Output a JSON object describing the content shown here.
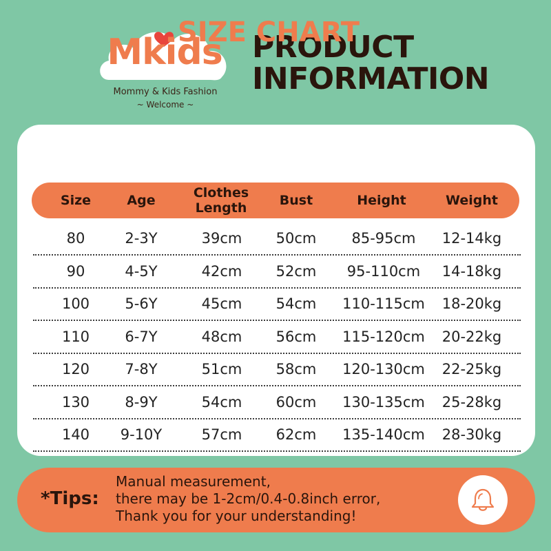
{
  "brand": {
    "name": "Mkids",
    "tagline": "Mommy & Kids Fashion",
    "sub": "~ Welcome ~",
    "logo_icons": [
      "cloud-icon",
      "heart-icon"
    ]
  },
  "headline": {
    "line1": "PRODUCT",
    "line2": "INFORMATION"
  },
  "chart": {
    "title": "SIZE CHART",
    "columns": [
      "Size",
      "Age",
      "Clothes Length",
      "Bust",
      "Height",
      "Weight"
    ],
    "rows": [
      [
        "80",
        "2-3Y",
        "39cm",
        "50cm",
        "85-95cm",
        "12-14kg"
      ],
      [
        "90",
        "4-5Y",
        "42cm",
        "52cm",
        "95-110cm",
        "14-18kg"
      ],
      [
        "100",
        "5-6Y",
        "45cm",
        "54cm",
        "110-115cm",
        "18-20kg"
      ],
      [
        "110",
        "6-7Y",
        "48cm",
        "56cm",
        "115-120cm",
        "20-22kg"
      ],
      [
        "120",
        "7-8Y",
        "51cm",
        "58cm",
        "120-130cm",
        "22-25kg"
      ],
      [
        "130",
        "8-9Y",
        "54cm",
        "60cm",
        "130-135cm",
        "25-28kg"
      ],
      [
        "140",
        "9-10Y",
        "57cm",
        "62cm",
        "135-140cm",
        "28-30kg"
      ]
    ]
  },
  "tips": {
    "label": "*Tips:",
    "lines": [
      "Manual measurement,",
      "there may be 1-2cm/0.4-0.8inch error,",
      "Thank you for your understanding!"
    ],
    "icon": "bell-icon"
  },
  "colors": {
    "background": "#7fc7a5",
    "accent": "#ef7c4d",
    "text_dark": "#2a150c",
    "card": "#ffffff"
  }
}
